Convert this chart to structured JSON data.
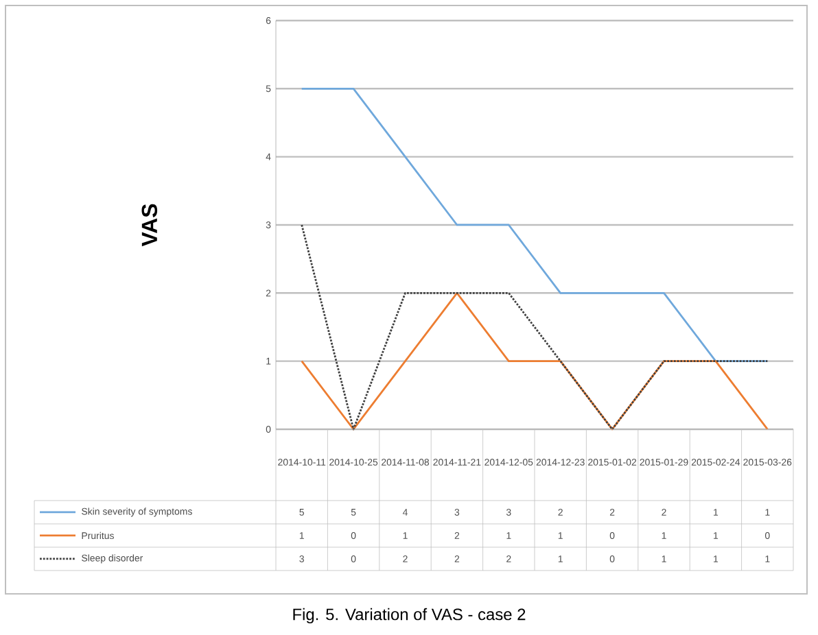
{
  "chart_data": {
    "type": "line",
    "ylabel": "VAS",
    "categories": [
      "2014-10-11",
      "2014-10-25",
      "2014-11-08",
      "2014-11-21",
      "2014-12-05",
      "2014-12-23",
      "2015-01-02",
      "2015-01-29",
      "2015-02-24",
      "2015-03-26"
    ],
    "series": [
      {
        "name": "Skin severity of symptoms",
        "color": "#6fa8dc",
        "line_style": "solid",
        "values": [
          5,
          5,
          4,
          3,
          3,
          2,
          2,
          2,
          1,
          1
        ]
      },
      {
        "name": "Pruritus",
        "color": "#ed7d31",
        "line_style": "solid",
        "values": [
          1,
          0,
          1,
          2,
          1,
          1,
          0,
          1,
          1,
          0
        ]
      },
      {
        "name": "Sleep disorder",
        "color": "#404040",
        "line_style": "dotted",
        "values": [
          3,
          0,
          2,
          2,
          2,
          1,
          0,
          1,
          1,
          1
        ]
      }
    ],
    "ylim": [
      0,
      6
    ],
    "yticks": [
      0,
      1,
      2,
      3,
      4,
      5,
      6
    ],
    "grid": "y",
    "legend": "bottom",
    "marker": "none",
    "data_labels": true,
    "annotations": [
      "Fig. 5. Variation of VAS - case 2"
    ]
  }
}
